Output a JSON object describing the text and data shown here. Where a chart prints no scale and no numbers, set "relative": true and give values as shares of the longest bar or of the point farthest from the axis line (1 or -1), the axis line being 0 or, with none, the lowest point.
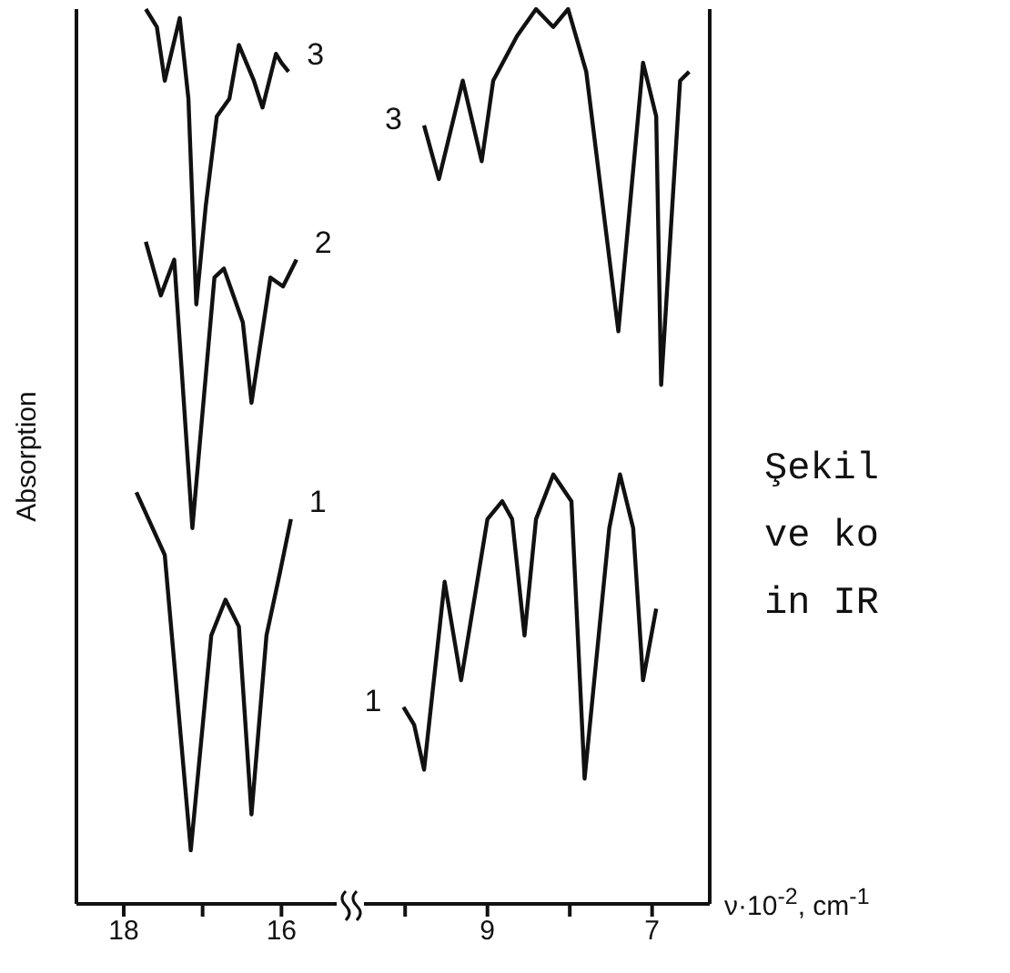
{
  "chart_data": [
    {
      "type": "line",
      "relative": true,
      "ylabel": "Absorption",
      "tick_labels": "x",
      "marker": "none",
      "xlim": [
        18.6,
        15.3
      ],
      "xticks": [
        18,
        {
          "value": 17,
          "label": null
        },
        16
      ],
      "series": [
        {
          "name": "3",
          "color": "#111111",
          "x": [
            17.72,
            17.58,
            17.48,
            17.29,
            17.18,
            17.08,
            16.96,
            16.82,
            16.66,
            16.54,
            16.35,
            16.24,
            16.07,
            16.0,
            15.91
          ],
          "values": [
            1.0,
            0.98,
            0.92,
            0.99,
            0.9,
            0.67,
            0.78,
            0.88,
            0.9,
            0.96,
            0.92,
            0.89,
            0.95,
            0.94,
            0.93
          ]
        },
        {
          "name": "2",
          "color": "#111111",
          "x": [
            17.72,
            17.53,
            17.36,
            17.13,
            16.85,
            16.73,
            16.49,
            16.38,
            16.14,
            15.98,
            15.81
          ],
          "values": [
            0.74,
            0.68,
            0.72,
            0.42,
            0.7,
            0.71,
            0.65,
            0.56,
            0.7,
            0.69,
            0.72
          ]
        },
        {
          "name": "1",
          "color": "#111111",
          "x": [
            17.84,
            17.48,
            17.15,
            16.89,
            16.71,
            16.54,
            16.38,
            16.19,
            16.02,
            15.88
          ],
          "values": [
            0.46,
            0.39,
            0.06,
            0.3,
            0.34,
            0.31,
            0.1,
            0.3,
            0.37,
            0.43
          ]
        }
      ]
    },
    {
      "type": "line",
      "relative": true,
      "xlabel": "ν·10$^{-2}$, cm$^{-1}$",
      "tick_labels": "x",
      "marker": "none",
      "xlim": [
        10.5,
        6.3
      ],
      "xticks": [
        {
          "value": 10,
          "label": null
        },
        9,
        {
          "value": 8,
          "label": null
        },
        7
      ],
      "annotations": [
        "Şekil",
        "ve ko",
        "in IR"
      ],
      "series": [
        {
          "name": "3",
          "color": "#111111",
          "x": [
            9.77,
            9.59,
            9.3,
            9.07,
            8.93,
            8.64,
            8.41,
            8.2,
            8.02,
            7.8,
            7.41,
            7.11,
            6.95,
            6.89,
            6.66,
            6.55
          ],
          "values": [
            0.87,
            0.81,
            0.92,
            0.83,
            0.92,
            0.97,
            1.0,
            0.98,
            1.0,
            0.93,
            0.64,
            0.94,
            0.88,
            0.58,
            0.92,
            0.93
          ]
        },
        {
          "name": "1",
          "color": "#111111",
          "x": [
            10.02,
            9.89,
            9.77,
            9.52,
            9.32,
            9.0,
            8.82,
            8.7,
            8.55,
            8.41,
            8.2,
            7.98,
            7.82,
            7.52,
            7.39,
            7.23,
            7.11,
            6.95
          ],
          "values": [
            0.22,
            0.2,
            0.15,
            0.36,
            0.25,
            0.43,
            0.45,
            0.43,
            0.3,
            0.43,
            0.48,
            0.45,
            0.14,
            0.42,
            0.48,
            0.42,
            0.25,
            0.33
          ]
        }
      ]
    }
  ]
}
